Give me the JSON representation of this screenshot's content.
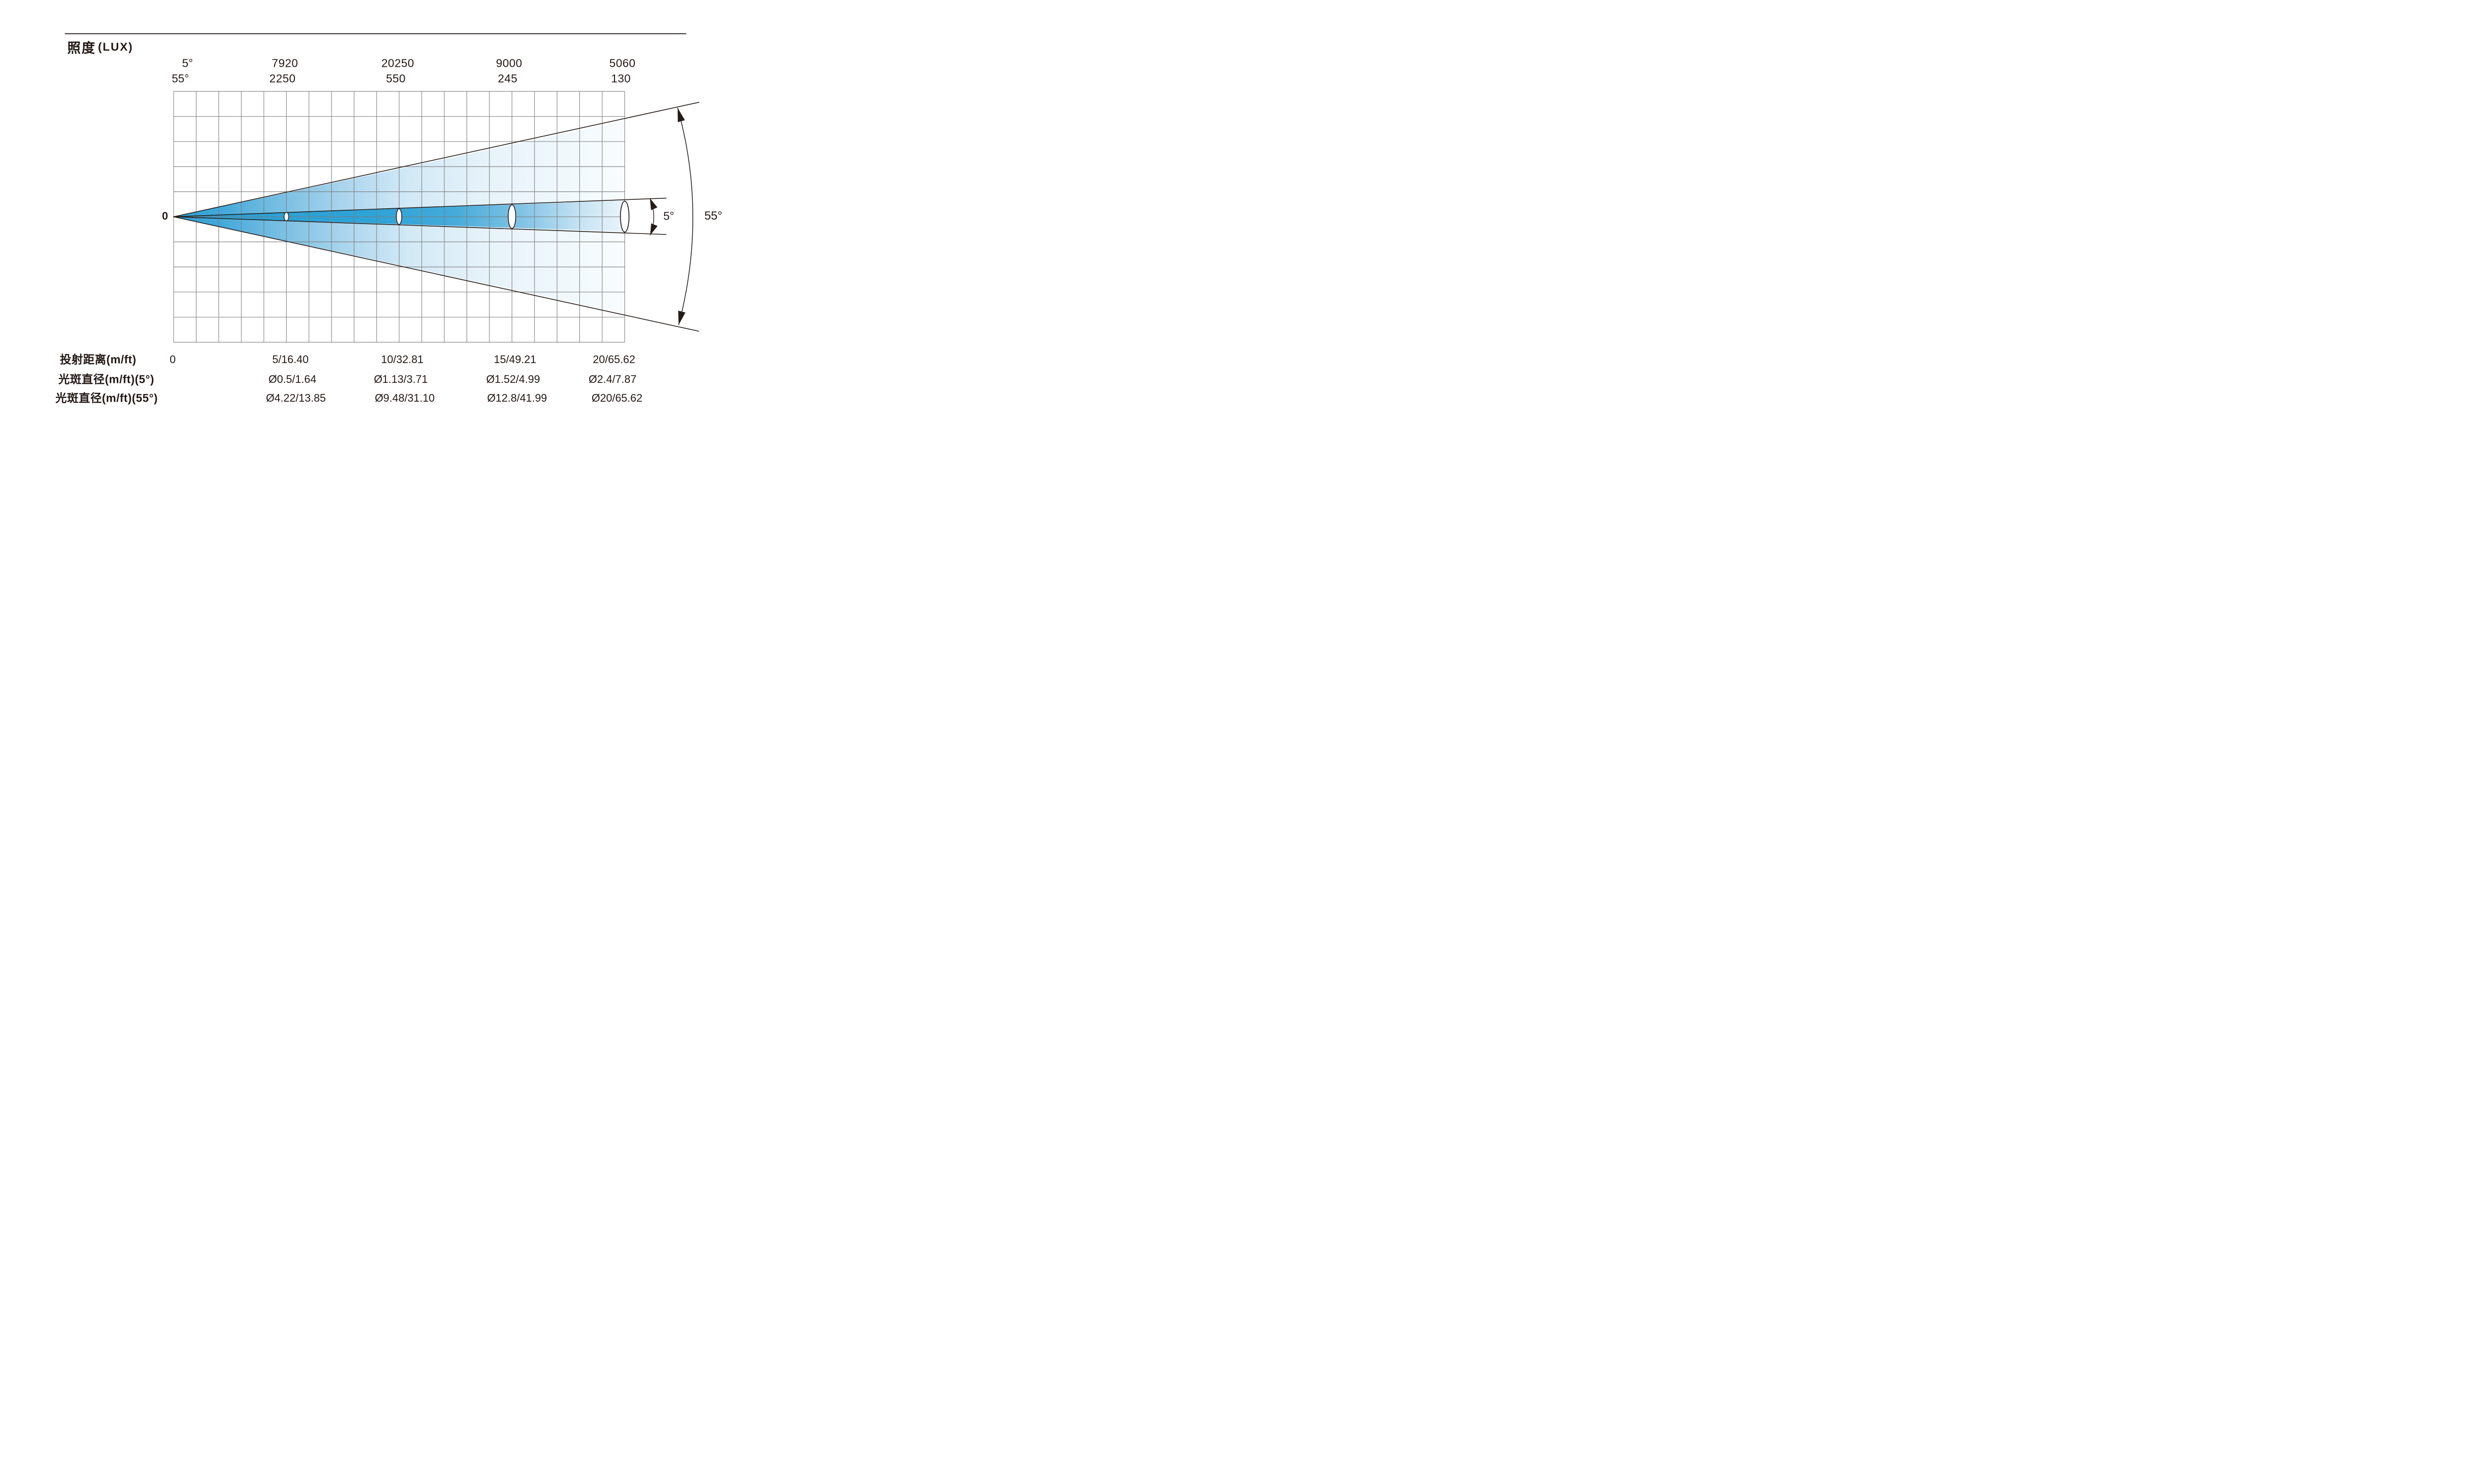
{
  "title": {
    "text_cjk": "照度",
    "text_unit": "(LUX)"
  },
  "header": {
    "angle_labels": [
      "5°",
      "55°"
    ],
    "row_5deg": [
      "7920",
      "20250",
      "9000",
      "5060"
    ],
    "row_55deg": [
      "2250",
      "550",
      "245",
      "130"
    ]
  },
  "diagram": {
    "origin_label": "0",
    "narrow_angle_label": "5°",
    "wide_angle_label": "55°",
    "grid_columns": 20,
    "grid_rows": 10,
    "colors": {
      "beam_dark": "#29a1d7",
      "beam_light": "#f6fbfe",
      "grid_line": "#7b7b7b",
      "draw_line": "#241c18",
      "text": "#231815"
    }
  },
  "footer": {
    "rows": [
      {
        "label": "投射距离(m/ft)",
        "values": [
          "0",
          "5/16.40",
          "10/32.81",
          "15/49.21",
          "20/65.62"
        ]
      },
      {
        "label": "光斑直径(m/ft)(5°)",
        "values": [
          "Ø0.5/1.64",
          "Ø1.13/3.71",
          "Ø1.52/4.99",
          "Ø2.4/7.87"
        ]
      },
      {
        "label": "光斑直径(m/ft)(55°)",
        "values": [
          "Ø4.22/13.85",
          "Ø9.48/31.10",
          "Ø12.8/41.99",
          "Ø20/65.62"
        ]
      }
    ]
  },
  "chart_data": {
    "type": "table",
    "subtype": "photometric_beam_cone_diagram",
    "title": "照度(LUX)",
    "beam_angles_deg": [
      5,
      55
    ],
    "distance_m": [
      0,
      5,
      10,
      15,
      20
    ],
    "distance_labels_m_ft": [
      "0",
      "5/16.40",
      "10/32.81",
      "15/49.21",
      "20/65.62"
    ],
    "series": [
      {
        "name": "illuminance_lux_5deg",
        "values": [
          7920,
          20250,
          9000,
          5060
        ]
      },
      {
        "name": "illuminance_lux_55deg",
        "values": [
          2250,
          550,
          245,
          130
        ]
      },
      {
        "name": "spot_diameter_5deg_m_ft",
        "values": [
          "Ø0.5/1.64",
          "Ø1.13/3.71",
          "Ø1.52/4.99",
          "Ø2.4/7.87"
        ]
      },
      {
        "name": "spot_diameter_55deg_m_ft",
        "values": [
          "Ø4.22/13.85",
          "Ø9.48/31.10",
          "Ø12.8/41.99",
          "Ø20/65.62"
        ]
      }
    ],
    "xlabel": "投射距离(m/ft)",
    "ylabel": "",
    "grid": {
      "columns": 20,
      "rows": 10,
      "cell_represents_m": 1,
      "grid_on": true
    },
    "legend_position": "none"
  }
}
